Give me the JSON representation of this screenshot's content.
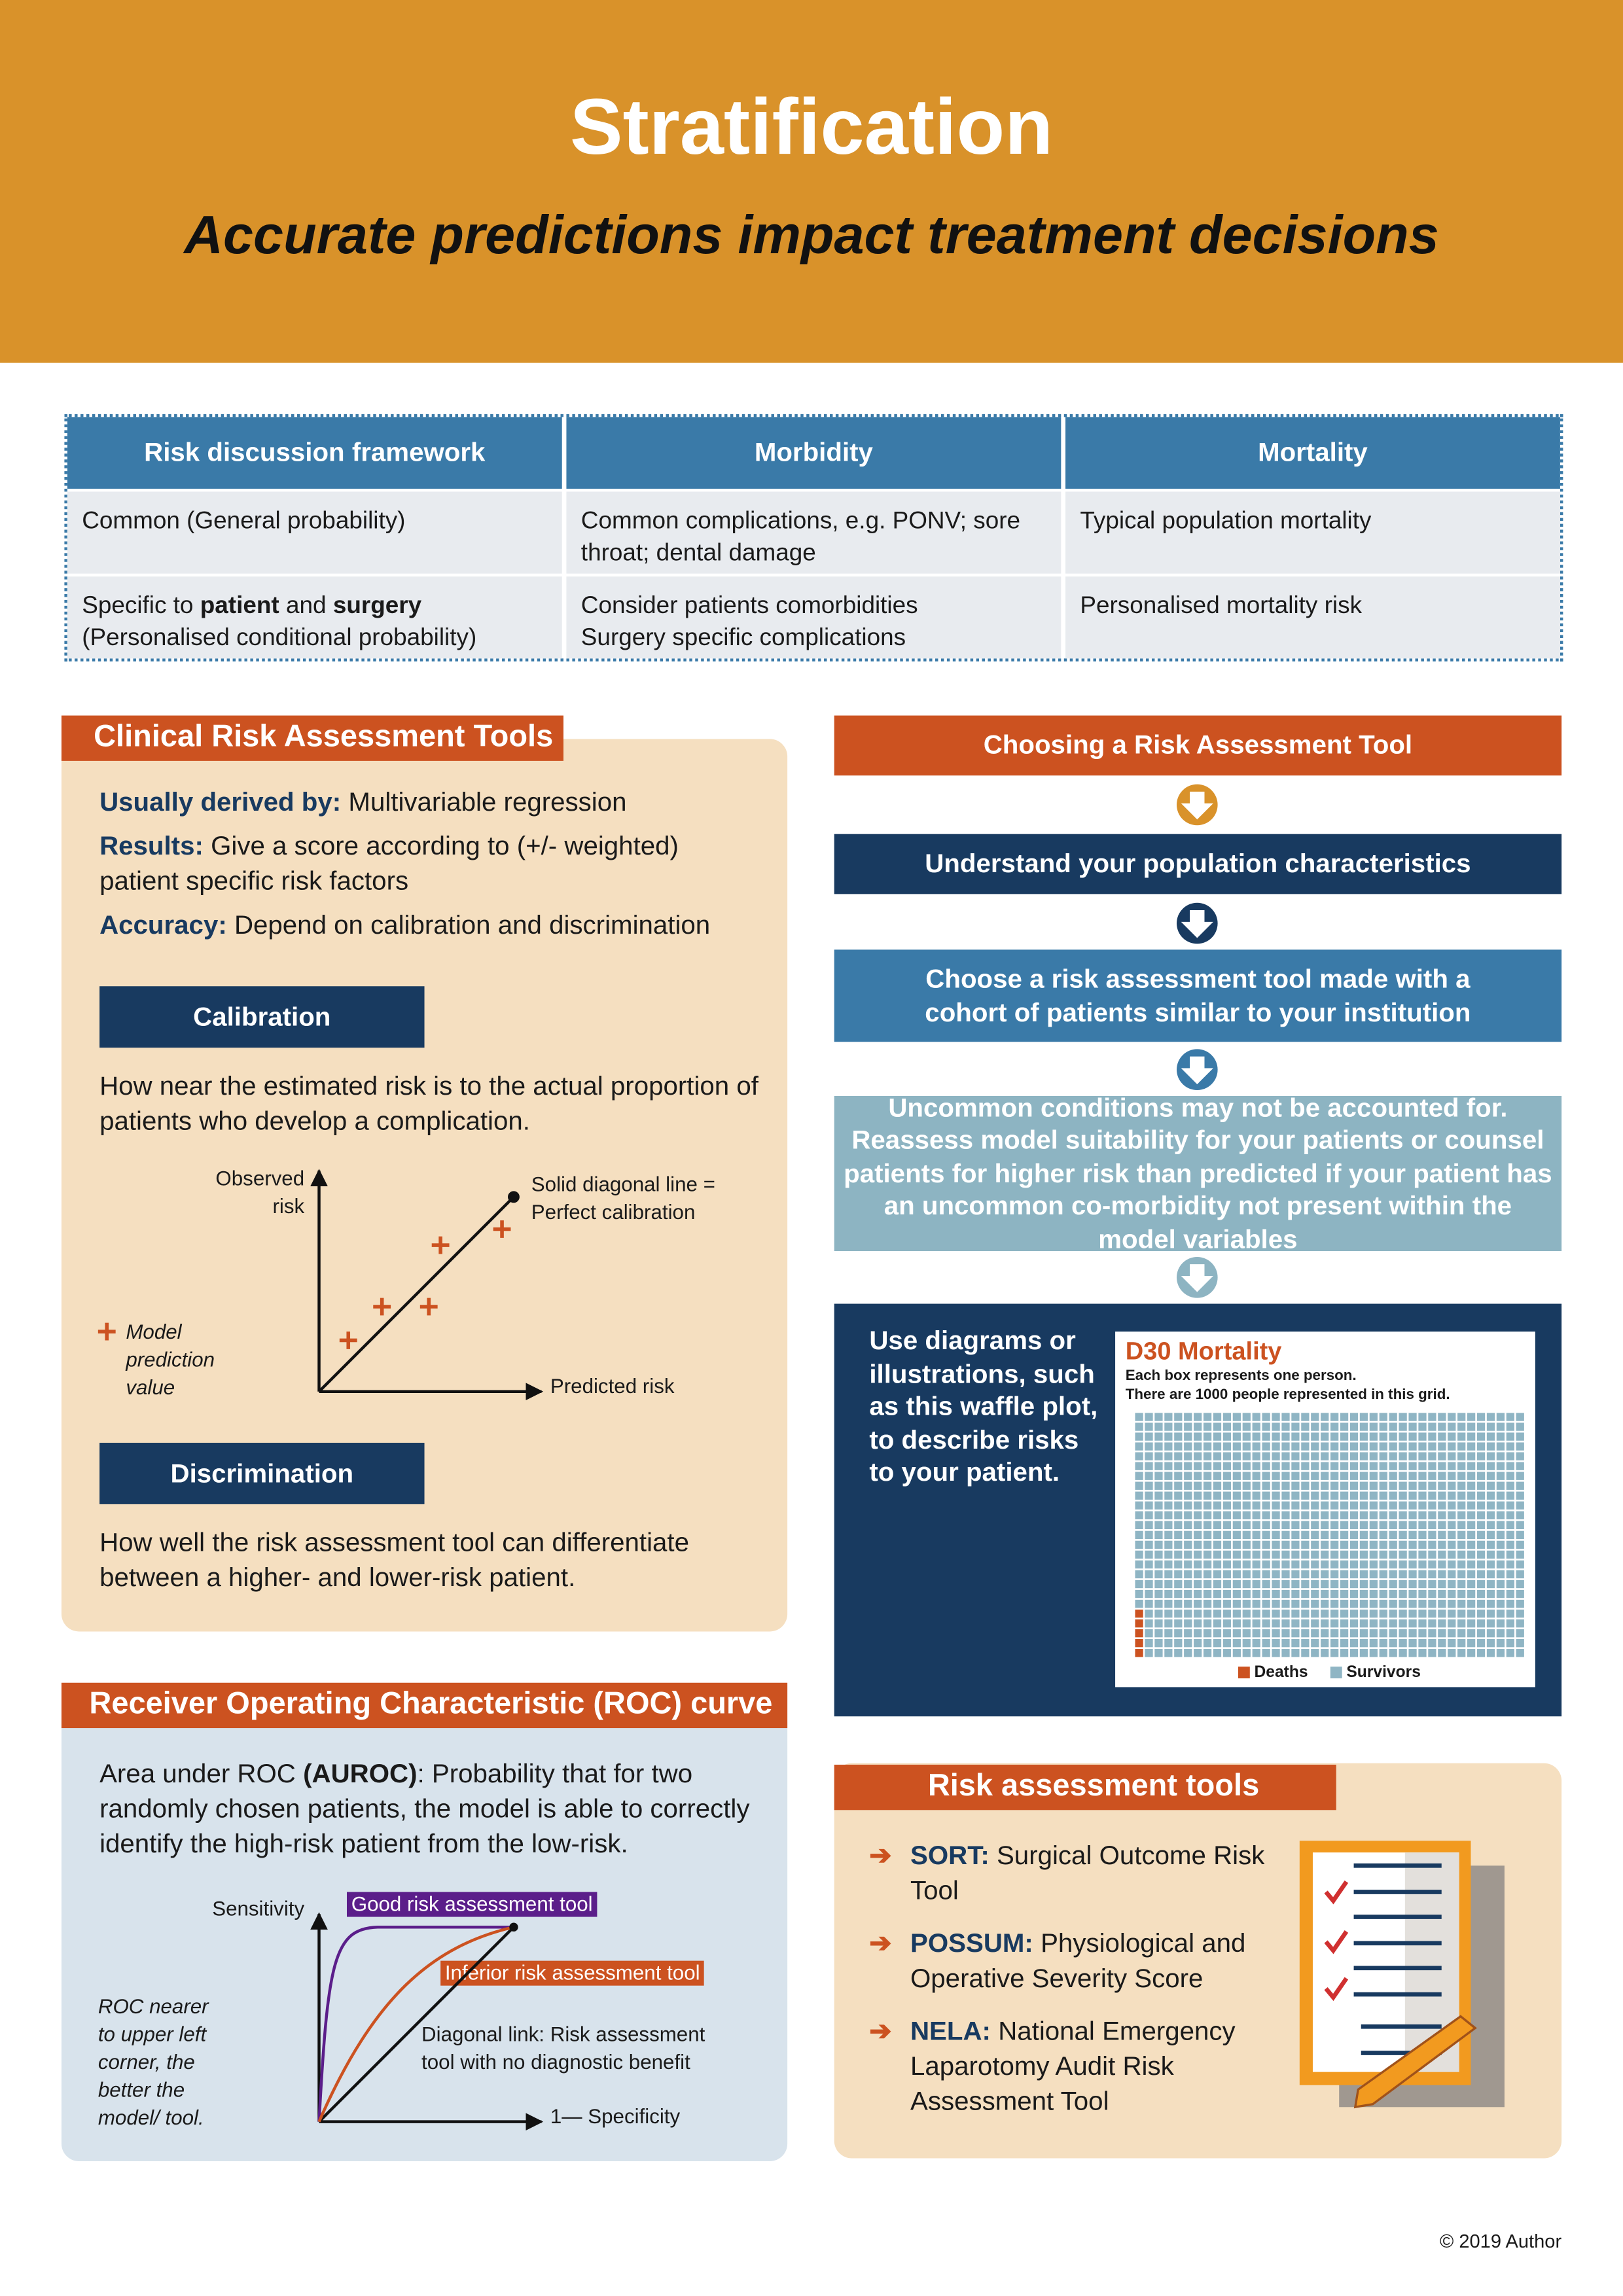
{
  "header": {
    "title": "Stratification",
    "subtitle": "Accurate predictions impact treatment decisions"
  },
  "table": {
    "headers": [
      "Risk discussion framework",
      "Morbidity",
      "Mortality"
    ],
    "rows": [
      [
        "Common (General probability)",
        "Common complications, e.g. PONV; sore throat; dental damage",
        "Typical population mortality"
      ],
      [
        {
          "parts": [
            "Specific to",
            "patient",
            "and",
            "surgery"
          ],
          "note": "(Personalised conditional probability)"
        },
        [
          "Consider patients comorbidities",
          "Surgery specific complications"
        ],
        "Personalised mortality risk"
      ]
    ]
  },
  "clinical": {
    "title": "Clinical Risk Assessment Tools",
    "items": [
      {
        "label": "Usually derived by:",
        "text": "Multivariable regression"
      },
      {
        "label": "Results:",
        "text": "Give a score according to (+/- weighted) patient specific risk factors"
      },
      {
        "label": "Accuracy:",
        "text": "Depend on calibration and discrimination"
      }
    ],
    "calibration": {
      "heading": "Calibration",
      "text": "How near the estimated risk is to the actual proportion of patients who develop a complication.",
      "y_label": "Observed risk",
      "line_label": "Solid diagonal line = Perfect calibration",
      "marker_label": "Model prediction value",
      "x_label": "Predicted risk"
    },
    "discrimination": {
      "heading": "Discrimination",
      "text": "How well the risk assessment tool can differentiate between a higher- and lower-risk patient."
    }
  },
  "roc": {
    "title": "Receiver Operating Characteristic (ROC) curve",
    "text_parts": [
      "Area under ROC",
      "(AUROC)",
      ": Probability that for two randomly chosen patients, the model is able to correctly identify the high-risk patient from the low-risk."
    ],
    "y_label": "Sensitivity",
    "good_label": "Good risk assessment tool",
    "inferior_label": "Inferior risk assessment tool",
    "diagonal_label": "Diagonal link: Risk assessment tool with no diagnostic benefit",
    "x_label": "1— Specificity",
    "note": "ROC nearer to upper left corner, the better the model/ tool."
  },
  "flow": {
    "steps": [
      "Choosing a Risk Assessment Tool",
      "Understand your population characteristics",
      "Choose a risk assessment tool made with a cohort of patients similar to your institution",
      "Uncommon conditions may not be accounted for. Reassess model suitability for your patients or counsel patients for higher risk than predicted if your patient has an uncommon co-morbidity not present within the model variables"
    ],
    "final": "Use diagrams or illustrations, such as this waffle plot, to describe risks to your patient."
  },
  "waffle": {
    "title": "D30 Mortality",
    "notes": [
      "Each box represents one person.",
      "There are 1000 people represented in this grid."
    ],
    "series": [
      {
        "name": "Deaths",
        "color": "#cc5220",
        "value": 5
      },
      {
        "name": "Survivors",
        "color": "#8fb5c4",
        "value": 995
      }
    ]
  },
  "risk_tools": {
    "title": "Risk assessment tools",
    "items": [
      {
        "abbr": "SORT:",
        "text": "Surgical Outcome Risk Tool"
      },
      {
        "abbr": "POSSUM:",
        "text": "Physiological and Operative Severity Score"
      },
      {
        "abbr": "NELA:",
        "text": "National Emergency Laparotomy Audit Risk Assessment Tool"
      }
    ]
  },
  "footer": "© 2019 Author"
}
